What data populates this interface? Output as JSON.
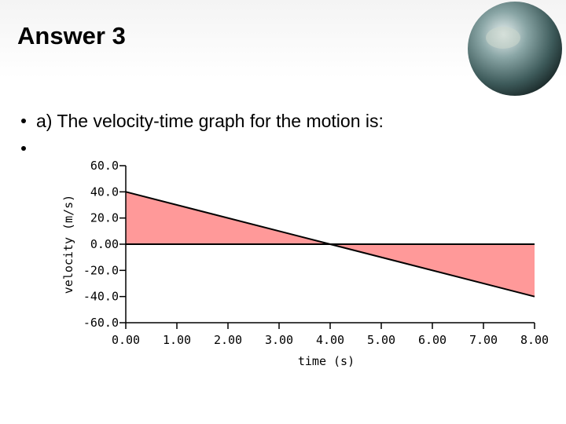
{
  "slide": {
    "title": "Answer 3",
    "bullet": "a) The velocity-time graph for the motion is:"
  },
  "chart_data": {
    "type": "line",
    "fill_to_zero": true,
    "fill_color": "#ff9999",
    "color": "#000000",
    "x_label": "time (s)",
    "y_label": "velocity (m/s)",
    "x": [
      0,
      4,
      8
    ],
    "series": [
      {
        "values": [
          40,
          0,
          -40
        ]
      }
    ],
    "zero_line": true,
    "xlim": [
      0,
      8
    ],
    "xticks": [
      {
        "value": 0,
        "label": "0.00"
      },
      {
        "value": 1,
        "label": "1.00"
      },
      {
        "value": 2,
        "label": "2.00"
      },
      {
        "value": 3,
        "label": "3.00"
      },
      {
        "value": 4,
        "label": "4.00"
      },
      {
        "value": 5,
        "label": "5.00"
      },
      {
        "value": 6,
        "label": "6.00"
      },
      {
        "value": 7,
        "label": "7.00"
      },
      {
        "value": 8,
        "label": "8.00"
      }
    ],
    "ylim": [
      -60,
      60
    ],
    "yticks": [
      {
        "value": 60,
        "label": "60.0"
      },
      {
        "value": 40,
        "label": "40.0"
      },
      {
        "value": 20,
        "label": "20.0"
      },
      {
        "value": 0,
        "label": "0.00"
      },
      {
        "value": -20,
        "label": "-20.0"
      },
      {
        "value": -40,
        "label": "-40.0"
      },
      {
        "value": -60,
        "label": "-60.0"
      }
    ]
  }
}
